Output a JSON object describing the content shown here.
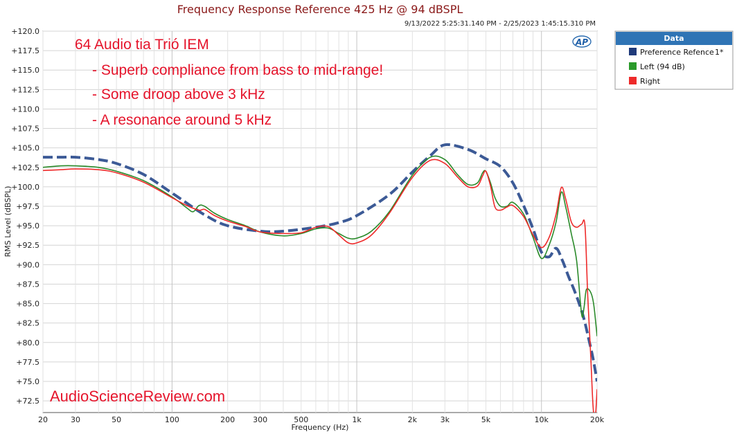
{
  "chart_data": {
    "type": "line",
    "title": "Frequency Response Reference 425 Hz @ 94 dBSPL",
    "subtitle": "9/13/2022 5:25:31.140 PM - 2/25/2023 1:45:15.310 PM",
    "xlabel": "Frequency (Hz)",
    "ylabel": "RMS Level (dBSPL)",
    "x_scale": "log",
    "xlim": [
      20,
      20000
    ],
    "ylim": [
      71.0,
      120.0
    ],
    "grid": true,
    "x_ticks": [
      {
        "v": 20,
        "label": "20"
      },
      {
        "v": 30,
        "label": "30"
      },
      {
        "v": 50,
        "label": "50"
      },
      {
        "v": 100,
        "label": "100"
      },
      {
        "v": 200,
        "label": "200"
      },
      {
        "v": 300,
        "label": "300"
      },
      {
        "v": 500,
        "label": "500"
      },
      {
        "v": 1000,
        "label": "1k"
      },
      {
        "v": 2000,
        "label": "2k"
      },
      {
        "v": 3000,
        "label": "3k"
      },
      {
        "v": 5000,
        "label": "5k"
      },
      {
        "v": 10000,
        "label": "10k"
      },
      {
        "v": 20000,
        "label": "20k"
      }
    ],
    "y_ticks": [
      {
        "v": 120.0,
        "label": "+120.0"
      },
      {
        "v": 117.5,
        "label": "+117.5"
      },
      {
        "v": 115.0,
        "label": "+115.0"
      },
      {
        "v": 112.5,
        "label": "+112.5"
      },
      {
        "v": 110.0,
        "label": "+110.0"
      },
      {
        "v": 107.5,
        "label": "+107.5"
      },
      {
        "v": 105.0,
        "label": "+105.0"
      },
      {
        "v": 102.5,
        "label": "+102.5"
      },
      {
        "v": 100.0,
        "label": "+100.0"
      },
      {
        "v": 97.5,
        "label": "+97.5"
      },
      {
        "v": 95.0,
        "label": "+95.0"
      },
      {
        "v": 92.5,
        "label": "+92.5"
      },
      {
        "v": 90.0,
        "label": "+90.0"
      },
      {
        "v": 87.5,
        "label": "+87.5"
      },
      {
        "v": 85.0,
        "label": "+85.0"
      },
      {
        "v": 82.5,
        "label": "+82.5"
      },
      {
        "v": 80.0,
        "label": "+80.0"
      },
      {
        "v": 77.5,
        "label": "+77.5"
      },
      {
        "v": 75.0,
        "label": "+75.0"
      },
      {
        "v": 72.5,
        "label": "+72.5"
      }
    ],
    "legend": {
      "title": "Data",
      "position": "right",
      "entries": [
        "Preference Refence",
        "Left (94 dB)",
        "Right"
      ],
      "note": "1*"
    },
    "annotations": {
      "heading": "64 Audio tia Trió IEM",
      "lines": [
        "- Superb compliance from bass to mid-range!",
        "- Some droop above 3 kHz",
        "- A resonance around 5 kHz"
      ],
      "watermark": "AudioScienceReview.com",
      "logo": "AP"
    },
    "series": [
      {
        "name": "Preference Refence",
        "color": "#3c5a96",
        "style": "dashed",
        "x": [
          20,
          25,
          30,
          40,
          50,
          70,
          100,
          150,
          200,
          300,
          400,
          600,
          800,
          1000,
          1500,
          2000,
          2500,
          3000,
          4000,
          5000,
          6000,
          7000,
          8000,
          9000,
          10000,
          11000,
          12000,
          13000,
          14000,
          15000,
          16000,
          17000,
          18000,
          19000,
          20000
        ],
        "y": [
          103.8,
          103.8,
          103.8,
          103.5,
          103.0,
          101.6,
          99.2,
          96.4,
          95.0,
          94.3,
          94.3,
          94.8,
          95.4,
          96.3,
          99.0,
          101.9,
          104.0,
          105.4,
          104.8,
          103.6,
          102.6,
          100.5,
          97.6,
          94.6,
          91.6,
          91.0,
          92.1,
          90.5,
          88.5,
          86.8,
          85.0,
          83.0,
          80.5,
          78.0,
          75.0
        ]
      },
      {
        "name": "Left (94 dB)",
        "color": "#2a8a2a",
        "style": "solid",
        "x": [
          20,
          25,
          30,
          40,
          50,
          70,
          100,
          120,
          130,
          140,
          150,
          170,
          200,
          250,
          300,
          400,
          500,
          600,
          700,
          800,
          900,
          1000,
          1200,
          1500,
          2000,
          2500,
          3000,
          3500,
          4000,
          4500,
          4800,
          5000,
          5300,
          5600,
          6000,
          6500,
          7000,
          8000,
          9000,
          10000,
          11000,
          12000,
          12800,
          13500,
          14500,
          15500,
          16500,
          17000,
          17500,
          18500,
          19200,
          20000
        ],
        "y": [
          102.5,
          102.7,
          102.7,
          102.5,
          102.0,
          100.8,
          98.7,
          97.3,
          96.8,
          97.6,
          97.5,
          96.6,
          95.8,
          95.0,
          94.2,
          93.7,
          94.0,
          94.6,
          94.7,
          94.0,
          93.4,
          93.4,
          94.3,
          96.8,
          101.5,
          103.8,
          103.5,
          101.6,
          100.3,
          100.5,
          101.8,
          102.0,
          100.5,
          98.6,
          97.5,
          97.5,
          98.0,
          96.5,
          93.5,
          90.8,
          92.5,
          95.5,
          99.3,
          97.5,
          94.0,
          90.5,
          83.6,
          84.5,
          86.8,
          86.4,
          84.8,
          80.8
        ]
      },
      {
        "name": "Right",
        "color": "#ee2a2a",
        "style": "solid",
        "x": [
          20,
          25,
          30,
          40,
          50,
          70,
          100,
          120,
          140,
          150,
          170,
          200,
          250,
          300,
          400,
          500,
          600,
          700,
          800,
          900,
          1000,
          1200,
          1500,
          2000,
          2500,
          3000,
          3500,
          4000,
          4500,
          4800,
          5000,
          5300,
          5600,
          6000,
          6500,
          7000,
          8000,
          9000,
          10000,
          11000,
          12000,
          12800,
          13500,
          14500,
          15500,
          16500,
          17200,
          17800,
          18500,
          19000,
          19500,
          20000
        ],
        "y": [
          102.1,
          102.2,
          102.3,
          102.2,
          101.8,
          100.6,
          98.6,
          97.6,
          97.0,
          97.1,
          96.3,
          95.6,
          94.9,
          94.2,
          94.0,
          94.1,
          94.8,
          94.9,
          93.8,
          92.8,
          92.8,
          93.8,
          96.6,
          101.2,
          103.4,
          103.0,
          101.3,
          100.0,
          100.1,
          101.4,
          102.0,
          100.1,
          97.4,
          97.0,
          97.4,
          97.6,
          96.2,
          93.8,
          92.2,
          93.5,
          96.5,
          99.9,
          98.5,
          95.5,
          94.8,
          95.2,
          95.0,
          86.0,
          78.0,
          72.0,
          70.0,
          74.0
        ]
      }
    ]
  }
}
